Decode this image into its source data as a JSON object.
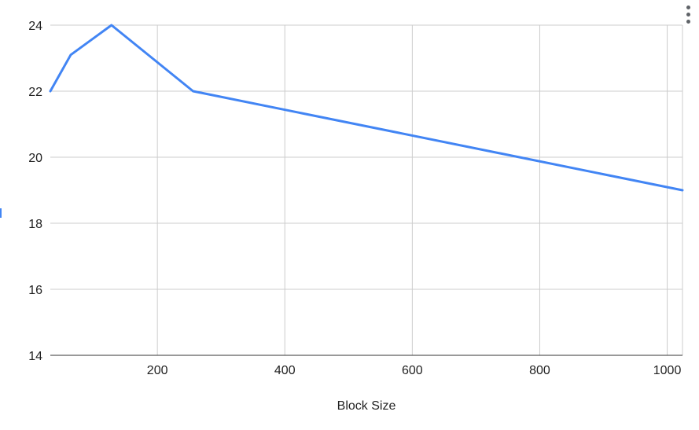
{
  "chart_data": {
    "type": "line",
    "title": "",
    "xlabel": "Block Size",
    "ylabel": "",
    "x": [
      32,
      64,
      128,
      256,
      1024
    ],
    "series": [
      {
        "values": [
          22,
          23.1,
          24,
          22,
          19
        ]
      }
    ],
    "xlim": [
      32,
      1024
    ],
    "ylim": [
      14,
      24
    ],
    "xticks": [
      200,
      400,
      600,
      800,
      1000
    ],
    "yticks": [
      14,
      16,
      18,
      20,
      22,
      24
    ],
    "grid": true,
    "line_color": "#4285f4",
    "grid_color": "#cccccc",
    "axis_color": "#333333"
  },
  "menu": {
    "icon": "more-vert-icon"
  }
}
